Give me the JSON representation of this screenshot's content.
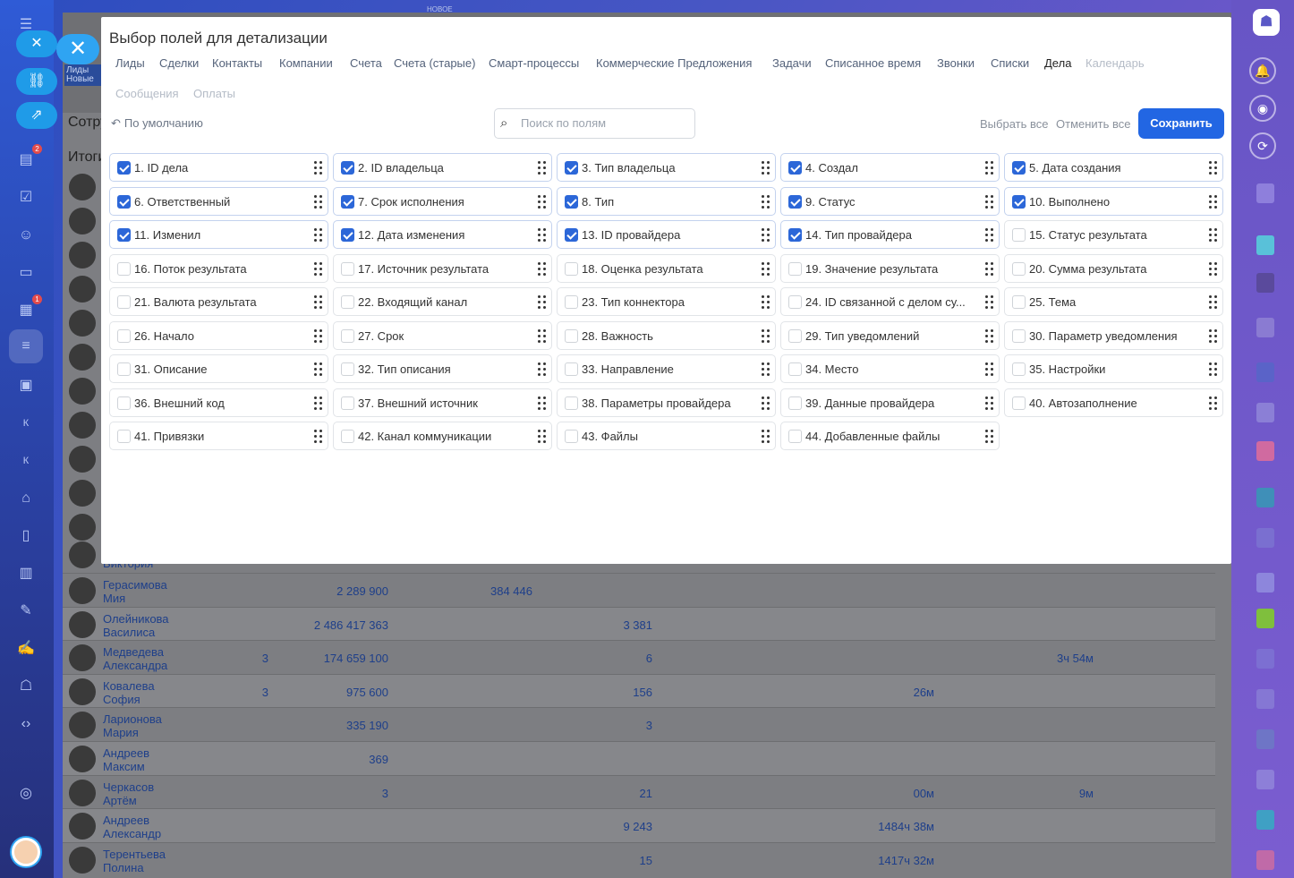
{
  "background": {
    "header_label": "Сотру",
    "totals_label": "Итоги",
    "tag_line1": "Лиды",
    "tag_line2": "Новые",
    "new_badge": "НОВОЕ",
    "partial_name": "Виктория",
    "rows": [
      {
        "name1": "Герасимова",
        "name2": "Мия",
        "c1": "",
        "c2": "2 289 900",
        "c3": "384 446",
        "c4": "",
        "c5": "",
        "c6": "",
        "c7": ""
      },
      {
        "name1": "Олейникова",
        "name2": "Василиса",
        "c1": "",
        "c2": "2 486 417 363",
        "c3": "",
        "c4": "3 381",
        "c5": "",
        "c6": "",
        "c7": ""
      },
      {
        "name1": "Медведева",
        "name2": "Александра",
        "c1": "3",
        "c2": "174 659 100",
        "c3": "",
        "c4": "6",
        "c5": "",
        "c6": "",
        "c7": "3ч 54м"
      },
      {
        "name1": "Ковалева",
        "name2": "София",
        "c1": "3",
        "c2": "975 600",
        "c3": "",
        "c4": "156",
        "c5": "26м",
        "c6": "",
        "c7": ""
      },
      {
        "name1": "Ларионова",
        "name2": "Мария",
        "c1": "",
        "c2": "335 190",
        "c3": "",
        "c4": "3",
        "c5": "",
        "c6": "",
        "c7": ""
      },
      {
        "name1": "Андреев",
        "name2": "Максим",
        "c1": "",
        "c2": "369",
        "c3": "",
        "c4": "",
        "c5": "",
        "c6": "",
        "c7": ""
      },
      {
        "name1": "Черкасов",
        "name2": "Артём",
        "c1": "",
        "c2": "3",
        "c3": "",
        "c4": "21",
        "c5": "00м",
        "c6": "9м",
        "c7": ""
      },
      {
        "name1": "Андреев",
        "name2": "Александр",
        "c1": "",
        "c2": "",
        "c3": "",
        "c4": "9 243",
        "c5": "1484ч 38м",
        "c6": "",
        "c7": ""
      },
      {
        "name1": "Терентьева",
        "name2": "Полина",
        "c1": "",
        "c2": "",
        "c3": "",
        "c4": "15",
        "c5": "1417ч 32м",
        "c6": "",
        "c7": ""
      }
    ]
  },
  "leftnav": {
    "badge_tasks": "2",
    "badge_calendar": "1",
    "k1": "К",
    "k2": "К"
  },
  "modal": {
    "title": "Выбор полей для детализации",
    "tabs": [
      {
        "label": "Лиды",
        "state": "normal"
      },
      {
        "label": "Сделки",
        "state": "normal"
      },
      {
        "label": "Контакты",
        "state": "normal"
      },
      {
        "label": "Компании",
        "state": "normal"
      },
      {
        "label": "Счета",
        "state": "normal"
      },
      {
        "label": "Счета (старые)",
        "state": "normal"
      },
      {
        "label": "Смарт-процессы",
        "state": "normal"
      },
      {
        "label": "Коммерческие Предложения",
        "state": "normal"
      },
      {
        "label": "Задачи",
        "state": "normal"
      },
      {
        "label": "Списанное время",
        "state": "normal"
      },
      {
        "label": "Звонки",
        "state": "normal"
      },
      {
        "label": "Списки",
        "state": "normal"
      },
      {
        "label": "Дела",
        "state": "active"
      },
      {
        "label": "Календарь",
        "state": "disabled"
      },
      {
        "label": "Сообщения",
        "state": "disabled"
      },
      {
        "label": "Оплаты",
        "state": "disabled"
      }
    ],
    "reset_label": "По умолчанию",
    "search_placeholder": "Поиск по полям",
    "select_all": "Выбрать все",
    "cancel_all": "Отменить все",
    "save": "Сохранить",
    "fields": [
      {
        "label": "1. ID дела",
        "checked": true
      },
      {
        "label": "2. ID владельца",
        "checked": true
      },
      {
        "label": "3. Тип владельца",
        "checked": true
      },
      {
        "label": "4. Создал",
        "checked": true
      },
      {
        "label": "5. Дата создания",
        "checked": true
      },
      {
        "label": "6. Ответственный",
        "checked": true
      },
      {
        "label": "7. Срок исполнения",
        "checked": true
      },
      {
        "label": "8. Тип",
        "checked": true
      },
      {
        "label": "9. Статус",
        "checked": true
      },
      {
        "label": "10. Выполнено",
        "checked": true
      },
      {
        "label": "11. Изменил",
        "checked": true
      },
      {
        "label": "12. Дата изменения",
        "checked": true
      },
      {
        "label": "13. ID провайдера",
        "checked": true
      },
      {
        "label": "14. Тип провайдера",
        "checked": true
      },
      {
        "label": "15. Статус результата",
        "checked": false
      },
      {
        "label": "16. Поток результата",
        "checked": false
      },
      {
        "label": "17. Источник результата",
        "checked": false
      },
      {
        "label": "18. Оценка результата",
        "checked": false
      },
      {
        "label": "19. Значение результата",
        "checked": false
      },
      {
        "label": "20. Сумма результата",
        "checked": false
      },
      {
        "label": "21. Валюта результата",
        "checked": false
      },
      {
        "label": "22. Входящий канал",
        "checked": false
      },
      {
        "label": "23. Тип коннектора",
        "checked": false
      },
      {
        "label": "24. ID связанной с делом су...",
        "checked": false
      },
      {
        "label": "25. Тема",
        "checked": false
      },
      {
        "label": "26. Начало",
        "checked": false
      },
      {
        "label": "27. Срок",
        "checked": false
      },
      {
        "label": "28. Важность",
        "checked": false
      },
      {
        "label": "29. Тип уведомлений",
        "checked": false
      },
      {
        "label": "30. Параметр уведомления",
        "checked": false
      },
      {
        "label": "31. Описание",
        "checked": false
      },
      {
        "label": "32. Тип описания",
        "checked": false
      },
      {
        "label": "33. Направление",
        "checked": false
      },
      {
        "label": "34. Место",
        "checked": false
      },
      {
        "label": "35. Настройки",
        "checked": false
      },
      {
        "label": "36. Внешний код",
        "checked": false
      },
      {
        "label": "37. Внешний источник",
        "checked": false
      },
      {
        "label": "38. Параметры провайдера",
        "checked": false
      },
      {
        "label": "39. Данные провайдера",
        "checked": false
      },
      {
        "label": "40. Автозаполнение",
        "checked": false
      },
      {
        "label": "41. Привязки",
        "checked": false
      },
      {
        "label": "42. Канал коммуникации",
        "checked": false
      },
      {
        "label": "43. Файлы",
        "checked": false
      },
      {
        "label": "44. Добавленные файлы",
        "checked": false
      }
    ]
  }
}
